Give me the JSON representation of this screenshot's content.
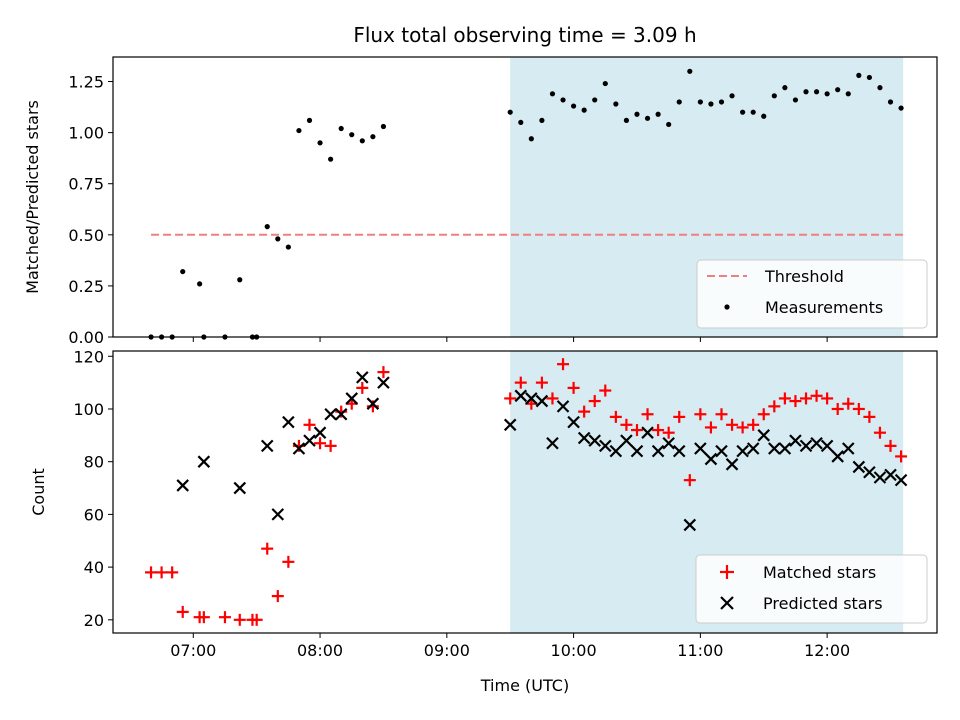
{
  "chart_data": {
    "title": "Flux total observing time = 3.09 h",
    "xlabel": "Time (UTC)",
    "x_ticks": [
      "07:00",
      "08:00",
      "09:00",
      "10:00",
      "11:00",
      "12:00"
    ],
    "x_range": [
      "06:22",
      "12:52"
    ],
    "shaded_interval": {
      "start": "09:30",
      "end": "12:36",
      "color": "#add8e6"
    },
    "panels": [
      {
        "type": "scatter",
        "ylabel": "Matched/Predicted stars",
        "ylim": [
          0,
          1.37
        ],
        "y_ticks": [
          "0.00",
          "0.25",
          "0.50",
          "0.75",
          "1.00",
          "1.25"
        ],
        "legend_position": "lower-right",
        "threshold": {
          "name": "Threshold",
          "value": 0.5,
          "start": "06:40",
          "end": "12:36",
          "color": "#f08080",
          "style": "dashed"
        },
        "series": [
          {
            "name": "Measurements",
            "color": "#000000",
            "marker": "dot",
            "points": [
              [
                "06:40",
                0.0
              ],
              [
                "06:45",
                0.0
              ],
              [
                "06:50",
                0.0
              ],
              [
                "06:55",
                0.32
              ],
              [
                "07:03",
                0.26
              ],
              [
                "07:05",
                0.0
              ],
              [
                "07:15",
                0.0
              ],
              [
                "07:22",
                0.28
              ],
              [
                "07:28",
                0.0
              ],
              [
                "07:30",
                0.0
              ],
              [
                "07:35",
                0.54
              ],
              [
                "07:40",
                0.48
              ],
              [
                "07:45",
                0.44
              ],
              [
                "07:50",
                1.01
              ],
              [
                "07:55",
                1.06
              ],
              [
                "08:00",
                0.95
              ],
              [
                "08:05",
                0.87
              ],
              [
                "08:10",
                1.02
              ],
              [
                "08:15",
                0.99
              ],
              [
                "08:20",
                0.96
              ],
              [
                "08:25",
                0.98
              ],
              [
                "08:30",
                1.03
              ],
              [
                "09:30",
                1.1
              ],
              [
                "09:35",
                1.05
              ],
              [
                "09:40",
                0.97
              ],
              [
                "09:45",
                1.06
              ],
              [
                "09:50",
                1.19
              ],
              [
                "09:55",
                1.16
              ],
              [
                "10:00",
                1.13
              ],
              [
                "10:05",
                1.11
              ],
              [
                "10:10",
                1.16
              ],
              [
                "10:15",
                1.24
              ],
              [
                "10:20",
                1.14
              ],
              [
                "10:25",
                1.06
              ],
              [
                "10:30",
                1.09
              ],
              [
                "10:35",
                1.07
              ],
              [
                "10:40",
                1.09
              ],
              [
                "10:45",
                1.04
              ],
              [
                "10:50",
                1.15
              ],
              [
                "10:55",
                1.3
              ],
              [
                "11:00",
                1.15
              ],
              [
                "11:05",
                1.14
              ],
              [
                "11:10",
                1.15
              ],
              [
                "11:15",
                1.18
              ],
              [
                "11:20",
                1.1
              ],
              [
                "11:25",
                1.1
              ],
              [
                "11:30",
                1.08
              ],
              [
                "11:35",
                1.18
              ],
              [
                "11:40",
                1.22
              ],
              [
                "11:45",
                1.16
              ],
              [
                "11:50",
                1.2
              ],
              [
                "11:55",
                1.2
              ],
              [
                "12:00",
                1.19
              ],
              [
                "12:05",
                1.21
              ],
              [
                "12:10",
                1.19
              ],
              [
                "12:15",
                1.28
              ],
              [
                "12:20",
                1.27
              ],
              [
                "12:25",
                1.22
              ],
              [
                "12:30",
                1.15
              ],
              [
                "12:35",
                1.12
              ]
            ]
          }
        ]
      },
      {
        "type": "scatter",
        "ylabel": "Count",
        "ylim": [
          15,
          122
        ],
        "y_ticks": [
          "20",
          "40",
          "60",
          "80",
          "100",
          "120"
        ],
        "legend_position": "lower-right",
        "series": [
          {
            "name": "Matched stars",
            "color": "#ff0000",
            "marker": "plus",
            "points": [
              [
                "06:40",
                38
              ],
              [
                "06:45",
                38
              ],
              [
                "06:50",
                38
              ],
              [
                "06:55",
                23
              ],
              [
                "07:03",
                21
              ],
              [
                "07:05",
                21
              ],
              [
                "07:15",
                21
              ],
              [
                "07:22",
                20
              ],
              [
                "07:28",
                20
              ],
              [
                "07:30",
                20
              ],
              [
                "07:35",
                47
              ],
              [
                "07:40",
                29
              ],
              [
                "07:45",
                42
              ],
              [
                "07:50",
                86
              ],
              [
                "07:55",
                94
              ],
              [
                "08:00",
                87
              ],
              [
                "08:05",
                86
              ],
              [
                "08:10",
                99
              ],
              [
                "08:15",
                102
              ],
              [
                "08:20",
                108
              ],
              [
                "08:25",
                101
              ],
              [
                "08:30",
                114
              ],
              [
                "09:30",
                104
              ],
              [
                "09:35",
                110
              ],
              [
                "09:40",
                102
              ],
              [
                "09:45",
                110
              ],
              [
                "09:50",
                104
              ],
              [
                "09:55",
                117
              ],
              [
                "10:00",
                108
              ],
              [
                "10:05",
                99
              ],
              [
                "10:10",
                103
              ],
              [
                "10:15",
                107
              ],
              [
                "10:20",
                97
              ],
              [
                "10:25",
                94
              ],
              [
                "10:30",
                92
              ],
              [
                "10:35",
                98
              ],
              [
                "10:40",
                92
              ],
              [
                "10:45",
                91
              ],
              [
                "10:50",
                97
              ],
              [
                "10:55",
                73
              ],
              [
                "11:00",
                98
              ],
              [
                "11:05",
                93
              ],
              [
                "11:10",
                98
              ],
              [
                "11:15",
                94
              ],
              [
                "11:20",
                93
              ],
              [
                "11:25",
                94
              ],
              [
                "11:30",
                98
              ],
              [
                "11:35",
                101
              ],
              [
                "11:40",
                104
              ],
              [
                "11:45",
                103
              ],
              [
                "11:50",
                104
              ],
              [
                "11:55",
                105
              ],
              [
                "12:00",
                104
              ],
              [
                "12:05",
                100
              ],
              [
                "12:10",
                102
              ],
              [
                "12:15",
                100
              ],
              [
                "12:20",
                97
              ],
              [
                "12:25",
                91
              ],
              [
                "12:30",
                86
              ],
              [
                "12:35",
                82
              ]
            ]
          },
          {
            "name": "Predicted stars",
            "color": "#000000",
            "marker": "x",
            "points": [
              [
                "06:55",
                71
              ],
              [
                "07:05",
                80
              ],
              [
                "07:22",
                70
              ],
              [
                "07:35",
                86
              ],
              [
                "07:40",
                60
              ],
              [
                "07:45",
                95
              ],
              [
                "07:50",
                85
              ],
              [
                "07:55",
                88
              ],
              [
                "08:00",
                91
              ],
              [
                "08:05",
                98
              ],
              [
                "08:10",
                98
              ],
              [
                "08:15",
                104
              ],
              [
                "08:20",
                112
              ],
              [
                "08:25",
                102
              ],
              [
                "08:30",
                110
              ],
              [
                "09:30",
                94
              ],
              [
                "09:35",
                105
              ],
              [
                "09:40",
                104
              ],
              [
                "09:45",
                103
              ],
              [
                "09:50",
                87
              ],
              [
                "09:55",
                101
              ],
              [
                "10:00",
                95
              ],
              [
                "10:05",
                89
              ],
              [
                "10:10",
                88
              ],
              [
                "10:15",
                86
              ],
              [
                "10:20",
                84
              ],
              [
                "10:25",
                88
              ],
              [
                "10:30",
                84
              ],
              [
                "10:35",
                91
              ],
              [
                "10:40",
                84
              ],
              [
                "10:45",
                87
              ],
              [
                "10:50",
                84
              ],
              [
                "10:55",
                56
              ],
              [
                "11:00",
                85
              ],
              [
                "11:05",
                81
              ],
              [
                "11:10",
                84
              ],
              [
                "11:15",
                79
              ],
              [
                "11:20",
                84
              ],
              [
                "11:25",
                85
              ],
              [
                "11:30",
                90
              ],
              [
                "11:35",
                85
              ],
              [
                "11:40",
                85
              ],
              [
                "11:45",
                88
              ],
              [
                "11:50",
                86
              ],
              [
                "11:55",
                87
              ],
              [
                "12:00",
                86
              ],
              [
                "12:05",
                82
              ],
              [
                "12:10",
                85
              ],
              [
                "12:15",
                78
              ],
              [
                "12:20",
                76
              ],
              [
                "12:25",
                74
              ],
              [
                "12:30",
                75
              ],
              [
                "12:35",
                73
              ]
            ]
          }
        ]
      }
    ]
  }
}
